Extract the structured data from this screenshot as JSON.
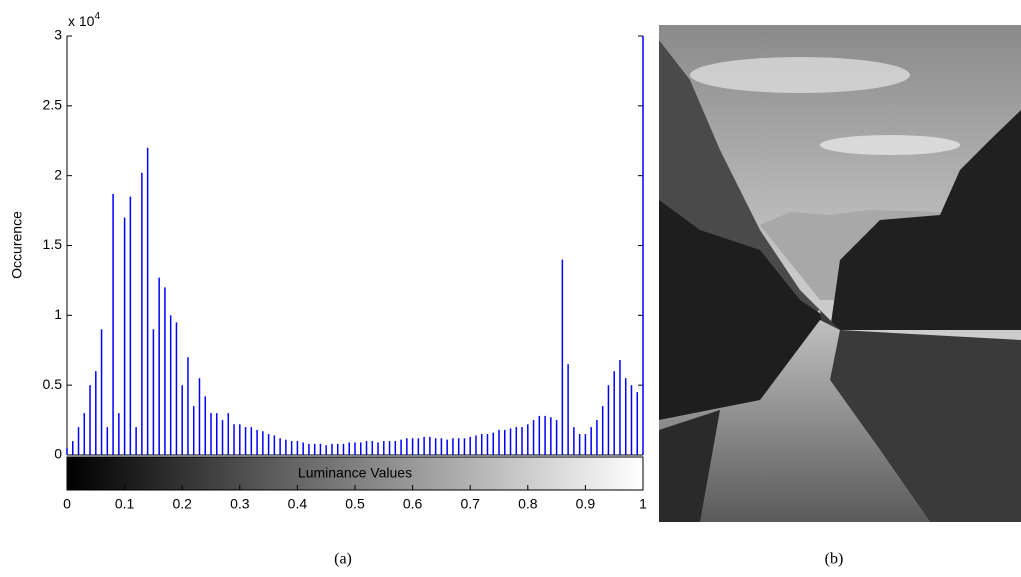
{
  "chart_data": {
    "type": "stem",
    "y_label": "Occurence",
    "y_multiplier": "x 10",
    "y_multiplier_exp": "4",
    "colorbar_label": "Luminance Values",
    "caption_a": "(a)",
    "caption_b": "(b)",
    "color": "#0000ff",
    "xlim": [
      0,
      1
    ],
    "ylim": [
      0,
      3
    ],
    "xticks": [
      0,
      0.1,
      0.2,
      0.3,
      0.4,
      0.5,
      0.6,
      0.7,
      0.8,
      0.9,
      1
    ],
    "yticks": [
      0,
      0.5,
      1,
      1.5,
      2,
      2.5,
      3
    ],
    "x": [
      0,
      0.01,
      0.02,
      0.03,
      0.04,
      0.05,
      0.06,
      0.07,
      0.08,
      0.09,
      0.1,
      0.11,
      0.12,
      0.13,
      0.14,
      0.15,
      0.16,
      0.17,
      0.18,
      0.19,
      0.2,
      0.21,
      0.22,
      0.23,
      0.24,
      0.25,
      0.26,
      0.27,
      0.28,
      0.29,
      0.3,
      0.31,
      0.32,
      0.33,
      0.34,
      0.35,
      0.36,
      0.37,
      0.38,
      0.39,
      0.4,
      0.41,
      0.42,
      0.43,
      0.44,
      0.45,
      0.46,
      0.47,
      0.48,
      0.49,
      0.5,
      0.51,
      0.52,
      0.53,
      0.54,
      0.55,
      0.56,
      0.57,
      0.58,
      0.59,
      0.6,
      0.61,
      0.62,
      0.63,
      0.64,
      0.65,
      0.66,
      0.67,
      0.68,
      0.69,
      0.7,
      0.71,
      0.72,
      0.73,
      0.74,
      0.75,
      0.76,
      0.77,
      0.78,
      0.79,
      0.8,
      0.81,
      0.82,
      0.83,
      0.84,
      0.85,
      0.86,
      0.87,
      0.88,
      0.89,
      0.9,
      0.91,
      0.92,
      0.93,
      0.94,
      0.95,
      0.96,
      0.97,
      0.98,
      0.99,
      1
    ],
    "values": [
      0.05,
      0.1,
      0.2,
      0.3,
      0.5,
      0.6,
      0.9,
      0.2,
      1.87,
      0.3,
      1.7,
      1.85,
      0.2,
      2.02,
      2.2,
      0.9,
      1.27,
      1.2,
      1.0,
      0.95,
      0.5,
      0.7,
      0.35,
      0.55,
      0.42,
      0.3,
      0.3,
      0.25,
      0.3,
      0.22,
      0.22,
      0.2,
      0.2,
      0.18,
      0.17,
      0.15,
      0.14,
      0.12,
      0.11,
      0.1,
      0.1,
      0.09,
      0.08,
      0.08,
      0.08,
      0.07,
      0.08,
      0.08,
      0.08,
      0.09,
      0.09,
      0.09,
      0.1,
      0.1,
      0.09,
      0.1,
      0.1,
      0.1,
      0.11,
      0.12,
      0.12,
      0.12,
      0.13,
      0.13,
      0.12,
      0.12,
      0.11,
      0.12,
      0.12,
      0.12,
      0.13,
      0.14,
      0.15,
      0.15,
      0.16,
      0.18,
      0.18,
      0.19,
      0.2,
      0.2,
      0.22,
      0.25,
      0.28,
      0.28,
      0.27,
      0.25,
      1.4,
      0.65,
      0.2,
      0.15,
      0.15,
      0.2,
      0.25,
      0.35,
      0.5,
      0.6,
      0.68,
      0.55,
      0.5,
      0.45,
      3.0
    ]
  }
}
